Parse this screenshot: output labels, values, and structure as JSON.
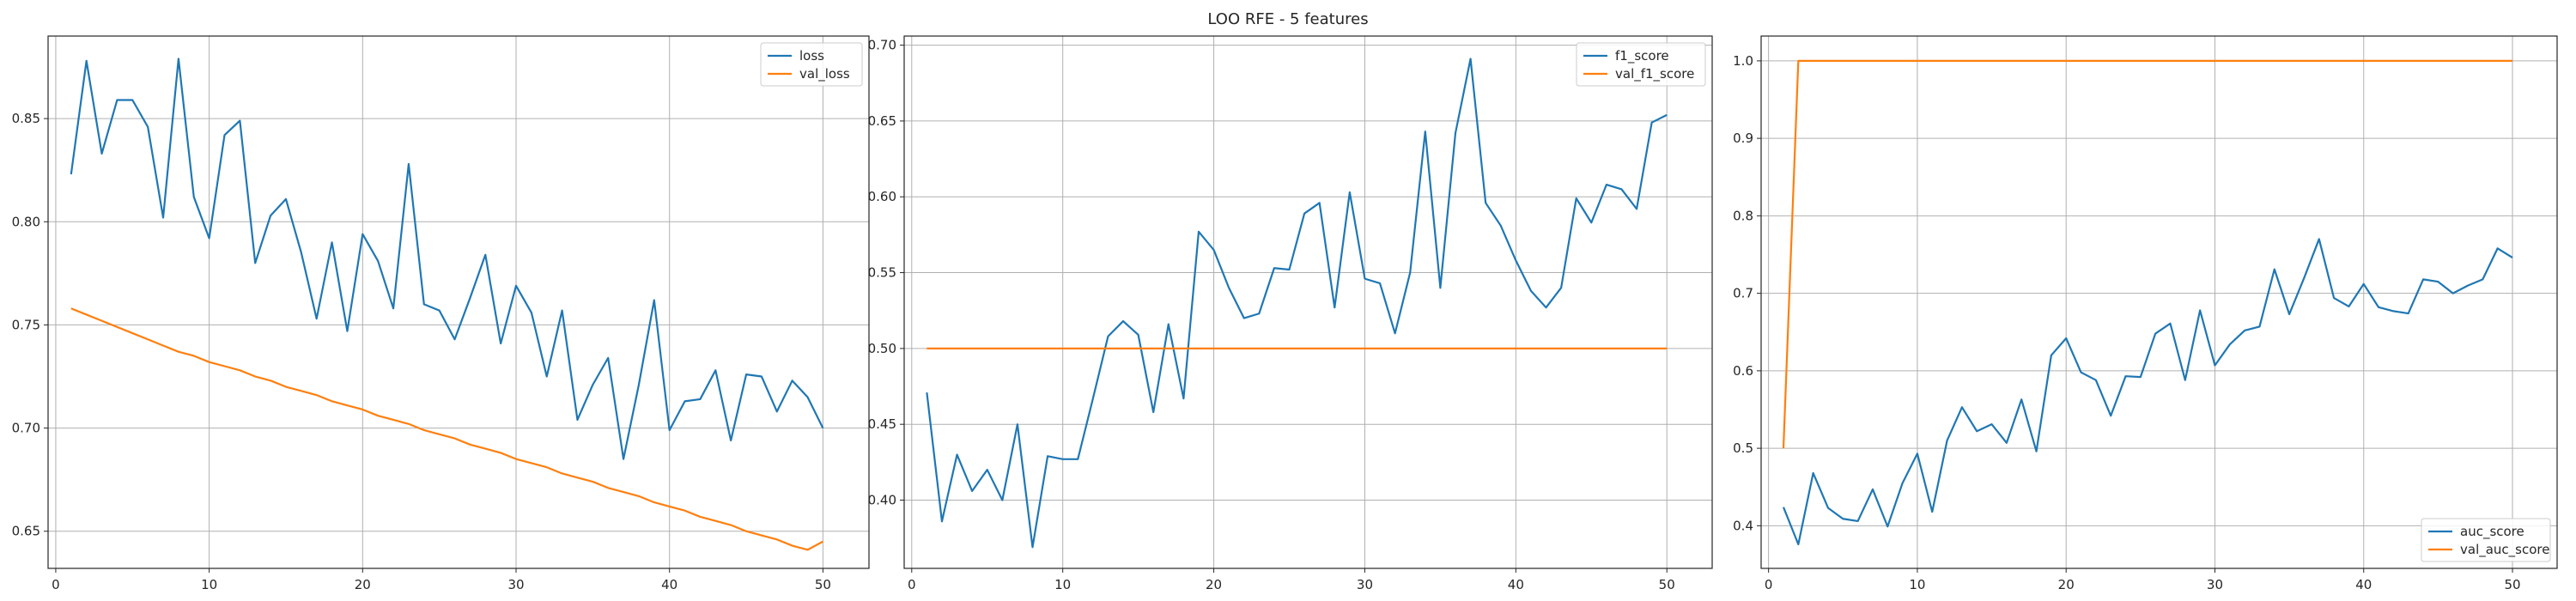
{
  "suptitle": "LOO RFE - 5 features",
  "colors": {
    "blue": "#1f77b4",
    "orange": "#ff7f0e",
    "grid": "#b0b0b0",
    "axis": "#262626"
  },
  "chart_data": [
    {
      "type": "line",
      "legend_position": "upper right",
      "grid": true,
      "xlim": [
        -0.5,
        53
      ],
      "ylim": [
        0.632,
        0.89
      ],
      "xticks": [
        0,
        10,
        20,
        30,
        40,
        50
      ],
      "yticks": [
        0.65,
        0.7,
        0.75,
        0.8,
        0.85
      ],
      "ytick_labels": [
        "0.65",
        "0.70",
        "0.75",
        "0.80",
        "0.85"
      ],
      "series": [
        {
          "name": "loss",
          "color": "#1f77b4",
          "values": [
            0.823,
            0.878,
            0.833,
            0.859,
            0.859,
            0.846,
            0.802,
            0.879,
            0.812,
            0.792,
            0.842,
            0.849,
            0.78,
            0.803,
            0.811,
            0.785,
            0.753,
            0.79,
            0.747,
            0.794,
            0.781,
            0.758,
            0.828,
            0.76,
            0.757,
            0.743,
            0.763,
            0.784,
            0.741,
            0.769,
            0.756,
            0.725,
            0.757,
            0.704,
            0.721,
            0.734,
            0.685,
            0.721,
            0.762,
            0.699,
            0.713,
            0.714,
            0.728,
            0.694,
            0.726,
            0.725,
            0.708,
            0.723,
            0.715,
            0.7
          ]
        },
        {
          "name": "val_loss",
          "color": "#ff7f0e",
          "values": [
            0.758,
            0.755,
            0.752,
            0.749,
            0.746,
            0.743,
            0.74,
            0.737,
            0.735,
            0.732,
            0.73,
            0.728,
            0.725,
            0.723,
            0.72,
            0.718,
            0.716,
            0.713,
            0.711,
            0.709,
            0.706,
            0.704,
            0.702,
            0.699,
            0.697,
            0.695,
            0.692,
            0.69,
            0.688,
            0.685,
            0.683,
            0.681,
            0.678,
            0.676,
            0.674,
            0.671,
            0.669,
            0.667,
            0.664,
            0.662,
            0.66,
            0.657,
            0.655,
            0.653,
            0.65,
            0.648,
            0.646,
            0.643,
            0.641,
            0.645
          ]
        }
      ]
    },
    {
      "type": "line",
      "legend_position": "upper right",
      "grid": true,
      "xlim": [
        -0.5,
        53
      ],
      "ylim": [
        0.355,
        0.706
      ],
      "xticks": [
        0,
        10,
        20,
        30,
        40,
        50
      ],
      "yticks": [
        0.4,
        0.45,
        0.5,
        0.55,
        0.6,
        0.65,
        0.7
      ],
      "ytick_labels": [
        "0.40",
        "0.45",
        "0.50",
        "0.55",
        "0.60",
        "0.65",
        "0.70"
      ],
      "series": [
        {
          "name": "f1_score",
          "color": "#1f77b4",
          "values": [
            0.471,
            0.386,
            0.43,
            0.406,
            0.42,
            0.4,
            0.45,
            0.369,
            0.429,
            0.427,
            0.427,
            0.467,
            0.508,
            0.518,
            0.509,
            0.458,
            0.516,
            0.467,
            0.577,
            0.565,
            0.54,
            0.52,
            0.523,
            0.553,
            0.552,
            0.589,
            0.596,
            0.527,
            0.603,
            0.546,
            0.543,
            0.51,
            0.55,
            0.643,
            0.54,
            0.642,
            0.691,
            0.596,
            0.581,
            0.558,
            0.538,
            0.527,
            0.54,
            0.599,
            0.583,
            0.608,
            0.605,
            0.592,
            0.649,
            0.654
          ]
        },
        {
          "name": "val_f1_score",
          "color": "#ff7f0e",
          "values": [
            0.5,
            0.5,
            0.5,
            0.5,
            0.5,
            0.5,
            0.5,
            0.5,
            0.5,
            0.5,
            0.5,
            0.5,
            0.5,
            0.5,
            0.5,
            0.5,
            0.5,
            0.5,
            0.5,
            0.5,
            0.5,
            0.5,
            0.5,
            0.5,
            0.5,
            0.5,
            0.5,
            0.5,
            0.5,
            0.5,
            0.5,
            0.5,
            0.5,
            0.5,
            0.5,
            0.5,
            0.5,
            0.5,
            0.5,
            0.5,
            0.5,
            0.5,
            0.5,
            0.5,
            0.5,
            0.5,
            0.5,
            0.5,
            0.5,
            0.5
          ]
        }
      ]
    },
    {
      "type": "line",
      "legend_position": "lower right",
      "grid": true,
      "xlim": [
        -0.5,
        53
      ],
      "ylim": [
        0.345,
        1.032
      ],
      "xticks": [
        0,
        10,
        20,
        30,
        40,
        50
      ],
      "yticks": [
        0.4,
        0.5,
        0.6,
        0.7,
        0.8,
        0.9,
        1.0
      ],
      "ytick_labels": [
        "0.4",
        "0.5",
        "0.6",
        "0.7",
        "0.8",
        "0.9",
        "1.0"
      ],
      "series": [
        {
          "name": "auc_score",
          "color": "#1f77b4",
          "values": [
            0.424,
            0.376,
            0.468,
            0.423,
            0.409,
            0.406,
            0.447,
            0.399,
            0.455,
            0.493,
            0.418,
            0.51,
            0.553,
            0.522,
            0.531,
            0.507,
            0.563,
            0.496,
            0.62,
            0.642,
            0.598,
            0.588,
            0.542,
            0.593,
            0.592,
            0.648,
            0.661,
            0.588,
            0.678,
            0.607,
            0.634,
            0.652,
            0.657,
            0.731,
            0.673,
            0.72,
            0.77,
            0.694,
            0.683,
            0.712,
            0.682,
            0.677,
            0.674,
            0.718,
            0.715,
            0.7,
            0.71,
            0.718,
            0.758,
            0.746
          ]
        },
        {
          "name": "val_auc_score",
          "color": "#ff7f0e",
          "values": [
            0.5,
            1.0,
            1.0,
            1.0,
            1.0,
            1.0,
            1.0,
            1.0,
            1.0,
            1.0,
            1.0,
            1.0,
            1.0,
            1.0,
            1.0,
            1.0,
            1.0,
            1.0,
            1.0,
            1.0,
            1.0,
            1.0,
            1.0,
            1.0,
            1.0,
            1.0,
            1.0,
            1.0,
            1.0,
            1.0,
            1.0,
            1.0,
            1.0,
            1.0,
            1.0,
            1.0,
            1.0,
            1.0,
            1.0,
            1.0,
            1.0,
            1.0,
            1.0,
            1.0,
            1.0,
            1.0,
            1.0,
            1.0,
            1.0,
            1.0
          ]
        }
      ]
    }
  ]
}
